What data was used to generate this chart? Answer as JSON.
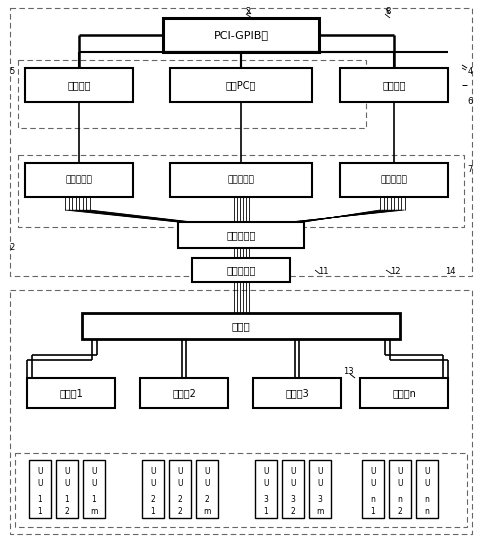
{
  "bg_color": "#ffffff",
  "fig_width": 4.82,
  "fig_height": 5.41,
  "labels": {
    "pci": "PCI-GPIB卡",
    "power": "程控电源",
    "pc": "工控PC机",
    "load": "程控负载",
    "switch_card": "程控开关卡",
    "data_card": "程控数据卡",
    "relay_card": "程控开关卡",
    "connector_male": "转接器公口",
    "connector_female": "转接器母口",
    "bus": "适配线",
    "box1": "插件符1",
    "box2": "插件符2",
    "box3": "插件符3",
    "boxn": "插件符n"
  }
}
